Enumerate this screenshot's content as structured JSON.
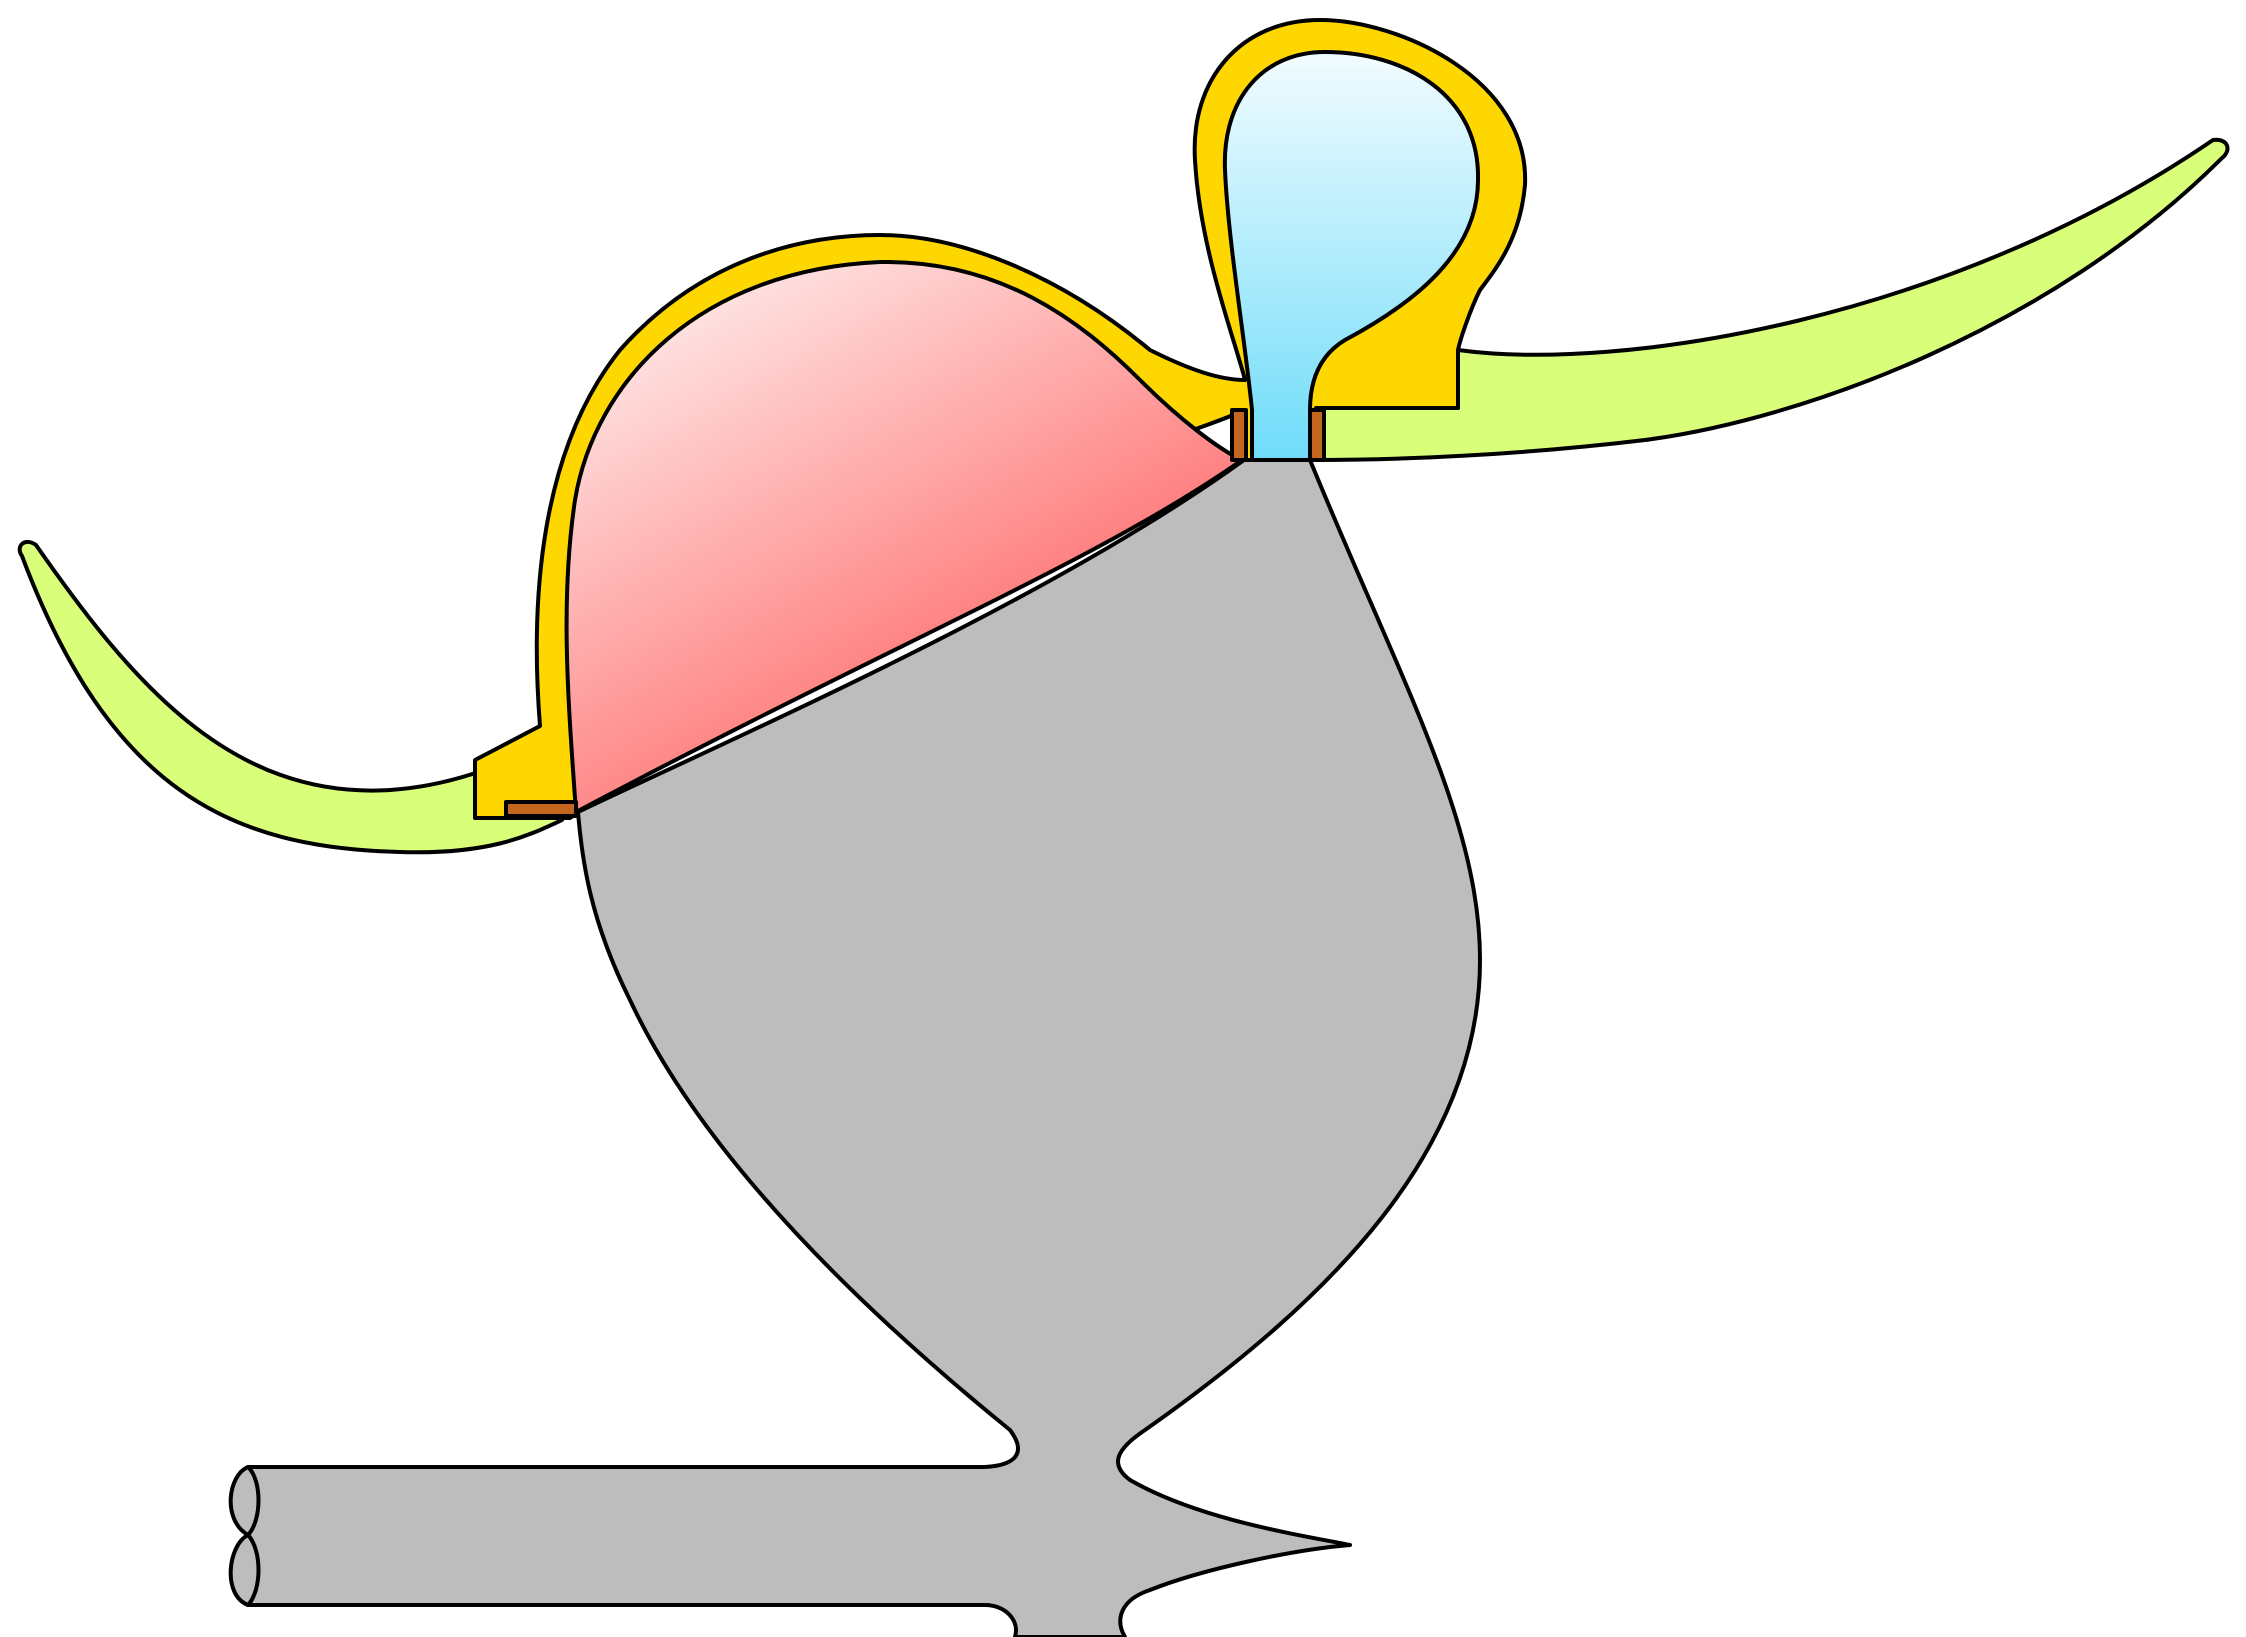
{
  "diagram": {
    "labels": [],
    "colors": {
      "background": "#ffffff",
      "outline": "#000000",
      "gray_body": "#bdbdbd",
      "yellow_shell": "#ffd700",
      "lime_wing": "#d9ff7a",
      "red_chamber_light": "#ffe9e9",
      "red_chamber_dark": "#ff5a5a",
      "blue_chamber_light": "#f2fcff",
      "blue_chamber_dark": "#6fdcf9",
      "brown_seal": "#c5661e"
    }
  }
}
